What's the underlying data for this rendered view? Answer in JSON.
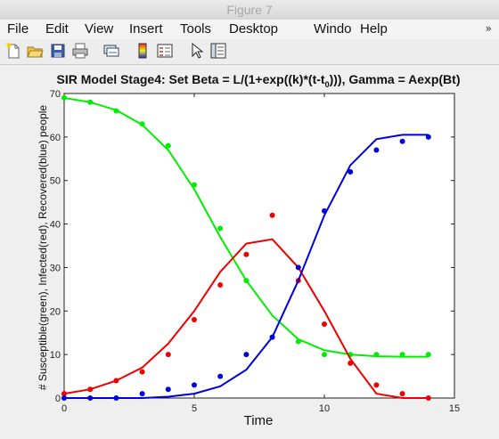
{
  "window": {
    "title": "Figure 7"
  },
  "menu": {
    "items": [
      "File",
      "Edit",
      "View",
      "Insert",
      "Tools",
      "Desktop",
      "Windo",
      "Help"
    ],
    "overflow_glyph": "»"
  },
  "toolbar": {
    "icons": [
      "new-figure-icon",
      "open-file-icon",
      "save-icon",
      "print-icon",
      "link-axes-icon",
      "insert-colorbar-icon",
      "insert-legend-icon",
      "edit-plot-arrow-icon",
      "property-inspector-icon"
    ]
  },
  "colors": {
    "susceptible": "#00ee00",
    "infected": "#ee0000",
    "recovered": "#0000dd",
    "axes_bg": "#ffffff",
    "figure_bg": "#efefef"
  },
  "chart_data": {
    "type": "line",
    "title_main": "SIR Model Stage4: Set Beta = L/(1+exp((k)*(t-t",
    "title_sub": "0",
    "title_end": "))), Gamma = Aexp(Bt)",
    "xlabel": "Time",
    "ylabel": "# Susceptible(green), Infected(red), Recovered(blue) people",
    "xlim": [
      0,
      15
    ],
    "ylim": [
      0,
      70
    ],
    "xticks": [
      0,
      5,
      10,
      15
    ],
    "yticks": [
      0,
      10,
      20,
      30,
      40,
      50,
      60,
      70
    ],
    "grid": false,
    "series": [
      {
        "key": "susceptible",
        "fit_x": [
          0,
          1,
          2,
          3,
          4,
          5,
          6,
          7,
          8,
          9,
          10,
          11,
          12,
          13,
          14
        ],
        "fit_y": [
          69,
          68,
          66.2,
          62.8,
          57,
          48,
          37,
          27,
          19,
          13.5,
          11,
          10,
          9.6,
          9.5,
          9.5
        ],
        "obs_x": [
          0,
          1,
          2,
          3,
          4,
          5,
          6,
          7,
          8,
          9,
          10,
          11,
          12,
          13,
          14
        ],
        "obs_y": [
          69,
          68,
          66,
          63,
          58,
          49,
          39,
          27,
          14,
          13,
          10,
          10,
          10,
          10,
          10
        ]
      },
      {
        "key": "infected",
        "fit_x": [
          0,
          1,
          2,
          3,
          4,
          5,
          6,
          7,
          8,
          9,
          10,
          11,
          12,
          13,
          14
        ],
        "fit_y": [
          1,
          2,
          4,
          7,
          12.5,
          20,
          29,
          35.5,
          36.5,
          30,
          20,
          9,
          1,
          0,
          0
        ],
        "obs_x": [
          0,
          1,
          2,
          3,
          4,
          5,
          6,
          7,
          8,
          9,
          10,
          11,
          12,
          13,
          14
        ],
        "obs_y": [
          1,
          2,
          4,
          6,
          10,
          18,
          26,
          33,
          42,
          27,
          17,
          8,
          3,
          1,
          0
        ]
      },
      {
        "key": "recovered",
        "fit_x": [
          0,
          1,
          2,
          3,
          4,
          5,
          6,
          7,
          8,
          9,
          10,
          11,
          12,
          13,
          14
        ],
        "fit_y": [
          0,
          0,
          0,
          0,
          0.3,
          1,
          2.7,
          6.5,
          14,
          27,
          42,
          53.5,
          59.5,
          60.5,
          60.5
        ],
        "obs_x": [
          0,
          1,
          2,
          3,
          4,
          5,
          6,
          7,
          8,
          9,
          10,
          11,
          12,
          13,
          14
        ],
        "obs_y": [
          0,
          0,
          0,
          1,
          2,
          3,
          5,
          10,
          14,
          30,
          43,
          52,
          57,
          59,
          60
        ]
      }
    ]
  }
}
